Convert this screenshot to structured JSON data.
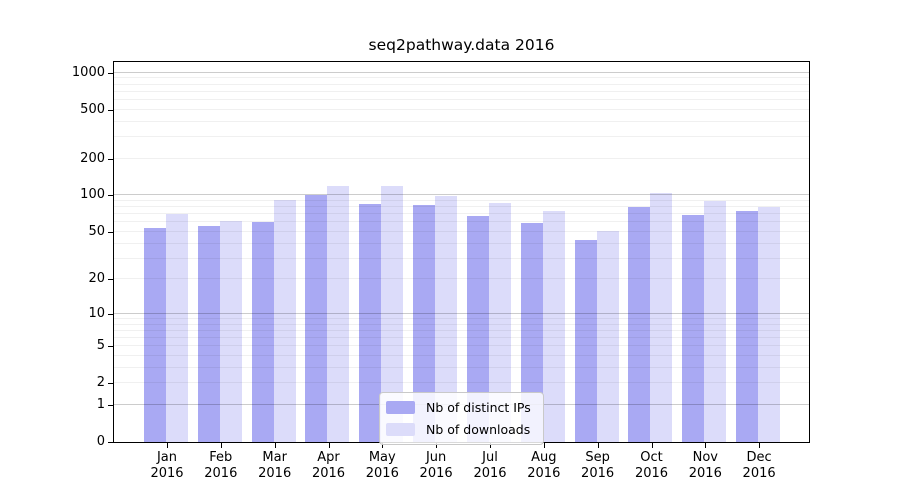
{
  "title": "seq2pathway.data 2016",
  "legend": {
    "items": [
      {
        "label": "Nb of distinct IPs",
        "swatch": "dark"
      },
      {
        "label": "Nb of downloads",
        "swatch": "light"
      }
    ]
  },
  "colors": {
    "bar_dark": "#a9a9f3",
    "bar_light": "#dcdcfa",
    "grid_major": "rgba(0,0,0,0.20)",
    "grid_minor": "rgba(0,0,0,0.06)",
    "axis": "#000000",
    "legend_bg": "rgba(255,255,255,0.85)",
    "legend_border": "#c9c9c9"
  },
  "chart_data": {
    "type": "bar",
    "title": "seq2pathway.data 2016",
    "categories": [
      "Jan",
      "Feb",
      "Mar",
      "Apr",
      "May",
      "Jun",
      "Jul",
      "Aug",
      "Sep",
      "Oct",
      "Nov",
      "Dec"
    ],
    "year_label": "2016",
    "series": [
      {
        "name": "Nb of distinct IPs",
        "values": [
          54,
          56,
          60,
          101,
          85,
          83,
          68,
          59,
          43,
          80,
          69,
          75
        ]
      },
      {
        "name": "Nb of downloads",
        "values": [
          71,
          62,
          92,
          119,
          119,
          99,
          86,
          74,
          51,
          105,
          90,
          80
        ]
      }
    ],
    "y_ticks": [
      0,
      1,
      2,
      5,
      10,
      20,
      50,
      100,
      200,
      500,
      1000
    ],
    "y_minor_grid": [
      2,
      3,
      4,
      5,
      6,
      7,
      8,
      9,
      20,
      30,
      40,
      50,
      60,
      70,
      80,
      90,
      200,
      300,
      400,
      500,
      600,
      700,
      800,
      900
    ],
    "y_major_grid": [
      1,
      10,
      100,
      1000
    ],
    "y_scale": "log10(v+1)",
    "y_max": 1224,
    "grid": true,
    "legend_position": "bottom-center"
  }
}
